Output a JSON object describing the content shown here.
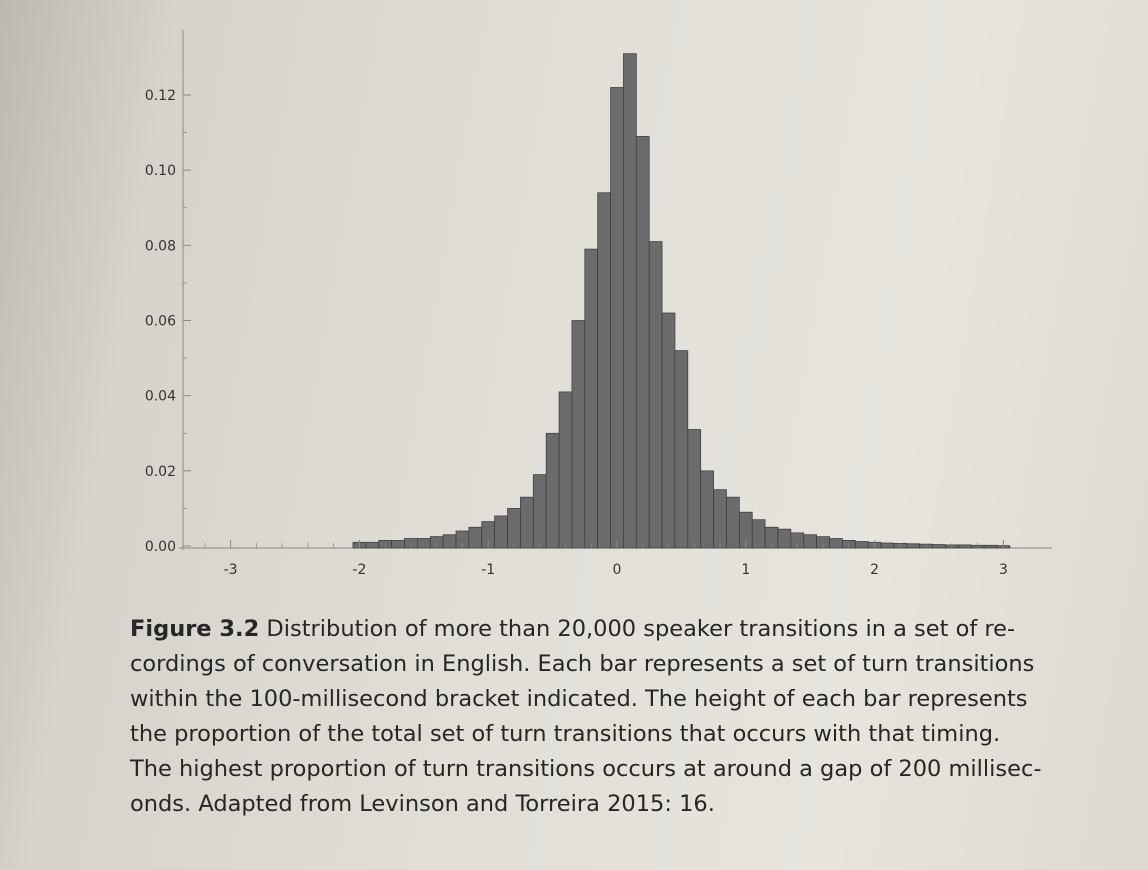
{
  "chart_data": {
    "type": "bar",
    "title": "",
    "xlabel": "",
    "ylabel": "",
    "xlim": [
      -3.4,
      3.3
    ],
    "ylim": [
      0,
      0.14
    ],
    "x_ticks": [
      -3,
      -2,
      -1,
      0,
      1,
      2,
      3
    ],
    "x_tick_labels": [
      "-3",
      "-2",
      "-1",
      "0",
      "1",
      "2",
      "3"
    ],
    "y_ticks": [
      0,
      0.02,
      0.04,
      0.06,
      0.08,
      0.1,
      0.12
    ],
    "y_tick_labels": [
      "0.00",
      "0.02",
      "0.04",
      "0.06",
      "0.08",
      "0.10",
      "0.12"
    ],
    "bin_width": 0.1,
    "bins": [
      {
        "x": -2.0,
        "value": 0.001
      },
      {
        "x": -1.9,
        "value": 0.001
      },
      {
        "x": -1.8,
        "value": 0.0015
      },
      {
        "x": -1.7,
        "value": 0.0015
      },
      {
        "x": -1.6,
        "value": 0.002
      },
      {
        "x": -1.5,
        "value": 0.002
      },
      {
        "x": -1.4,
        "value": 0.0025
      },
      {
        "x": -1.3,
        "value": 0.003
      },
      {
        "x": -1.2,
        "value": 0.004
      },
      {
        "x": -1.1,
        "value": 0.005
      },
      {
        "x": -1.0,
        "value": 0.0065
      },
      {
        "x": -0.9,
        "value": 0.008
      },
      {
        "x": -0.8,
        "value": 0.01
      },
      {
        "x": -0.7,
        "value": 0.013
      },
      {
        "x": -0.6,
        "value": 0.019
      },
      {
        "x": -0.5,
        "value": 0.03
      },
      {
        "x": -0.4,
        "value": 0.041
      },
      {
        "x": -0.3,
        "value": 0.06
      },
      {
        "x": -0.2,
        "value": 0.079
      },
      {
        "x": -0.1,
        "value": 0.094
      },
      {
        "x": 0.0,
        "value": 0.122
      },
      {
        "x": 0.1,
        "value": 0.131
      },
      {
        "x": 0.2,
        "value": 0.109
      },
      {
        "x": 0.3,
        "value": 0.081
      },
      {
        "x": 0.4,
        "value": 0.062
      },
      {
        "x": 0.5,
        "value": 0.052
      },
      {
        "x": 0.6,
        "value": 0.031
      },
      {
        "x": 0.7,
        "value": 0.02
      },
      {
        "x": 0.8,
        "value": 0.015
      },
      {
        "x": 0.9,
        "value": 0.013
      },
      {
        "x": 1.0,
        "value": 0.009
      },
      {
        "x": 1.1,
        "value": 0.007
      },
      {
        "x": 1.2,
        "value": 0.005
      },
      {
        "x": 1.3,
        "value": 0.0045
      },
      {
        "x": 1.4,
        "value": 0.0035
      },
      {
        "x": 1.5,
        "value": 0.003
      },
      {
        "x": 1.6,
        "value": 0.0025
      },
      {
        "x": 1.7,
        "value": 0.002
      },
      {
        "x": 1.8,
        "value": 0.0015
      },
      {
        "x": 1.9,
        "value": 0.0012
      },
      {
        "x": 2.0,
        "value": 0.001
      },
      {
        "x": 2.1,
        "value": 0.0008
      },
      {
        "x": 2.2,
        "value": 0.0007
      },
      {
        "x": 2.3,
        "value": 0.0006
      },
      {
        "x": 2.4,
        "value": 0.0005
      },
      {
        "x": 2.5,
        "value": 0.0004
      },
      {
        "x": 2.6,
        "value": 0.0003
      },
      {
        "x": 2.7,
        "value": 0.0003
      },
      {
        "x": 2.8,
        "value": 0.0002
      },
      {
        "x": 2.9,
        "value": 0.0002
      },
      {
        "x": 3.0,
        "value": 0.0001
      }
    ],
    "colors": {
      "bar_fill": "#6b6b6b",
      "bar_stroke": "#3a3a3a",
      "axis": "#8a8a8a"
    }
  },
  "caption": {
    "label": "Figure 3.2",
    "lines": [
      " Distribution of more than 20,000 speaker transitions in a set of re-",
      "cordings of conversation in English. Each bar represents a set of turn transitions",
      "within the 100-millisecond bracket indicated. The height of each bar represents",
      "the proportion of the total set of turn transitions that occurs with that timing.",
      "The highest proportion of turn transitions occurs at around a gap of 200 millisec-",
      "onds. Adapted from Levinson and Torreira 2015: 16."
    ]
  }
}
